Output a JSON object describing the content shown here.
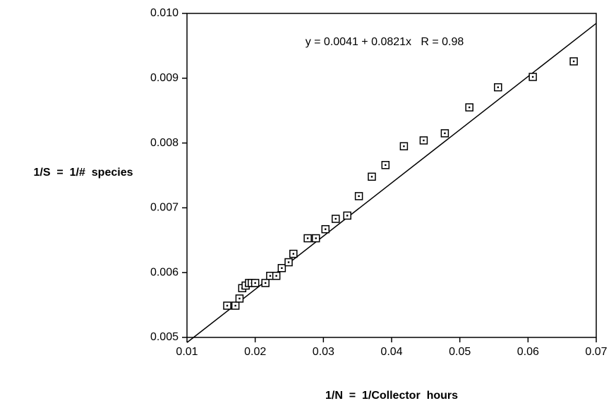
{
  "chart_data": {
    "type": "scatter",
    "annotation": "y = 0.0041 + 0.0821x   R = 0.98",
    "xlabel": "1/N  =  1/Collector  hours",
    "ylabel": "1/S  =  1/#  species",
    "fit": {
      "intercept": 0.0041,
      "slope": 0.0821
    },
    "x": [
      0.0159,
      0.0171,
      0.0177,
      0.0181,
      0.0186,
      0.0191,
      0.0195,
      0.02,
      0.0215,
      0.0222,
      0.0231,
      0.0239,
      0.0249,
      0.0256,
      0.0277,
      0.0289,
      0.0303,
      0.0318,
      0.0335,
      0.0352,
      0.0371,
      0.0391,
      0.0418,
      0.0447,
      0.0478,
      0.0514,
      0.0556,
      0.0607,
      0.0667
    ],
    "values": [
      0.00549,
      0.00549,
      0.0056,
      0.00576,
      0.0058,
      0.00584,
      0.00584,
      0.00584,
      0.00584,
      0.00595,
      0.00595,
      0.00607,
      0.00616,
      0.00629,
      0.00653,
      0.00653,
      0.00667,
      0.00683,
      0.00688,
      0.00718,
      0.00748,
      0.00766,
      0.00795,
      0.00804,
      0.00815,
      0.00855,
      0.00886,
      0.00902,
      0.00926
    ],
    "color": "#000000",
    "xlim": [
      0.01,
      0.07
    ],
    "xticks": [
      0.01,
      0.02,
      0.03,
      0.04,
      0.05,
      0.06,
      0.07
    ],
    "ylim": [
      0.005,
      0.01
    ],
    "yticks": [
      0.005,
      0.006,
      0.007,
      0.008,
      0.009,
      {
        "value": 0.01,
        "label": "0.010"
      }
    ],
    "grid": false
  }
}
